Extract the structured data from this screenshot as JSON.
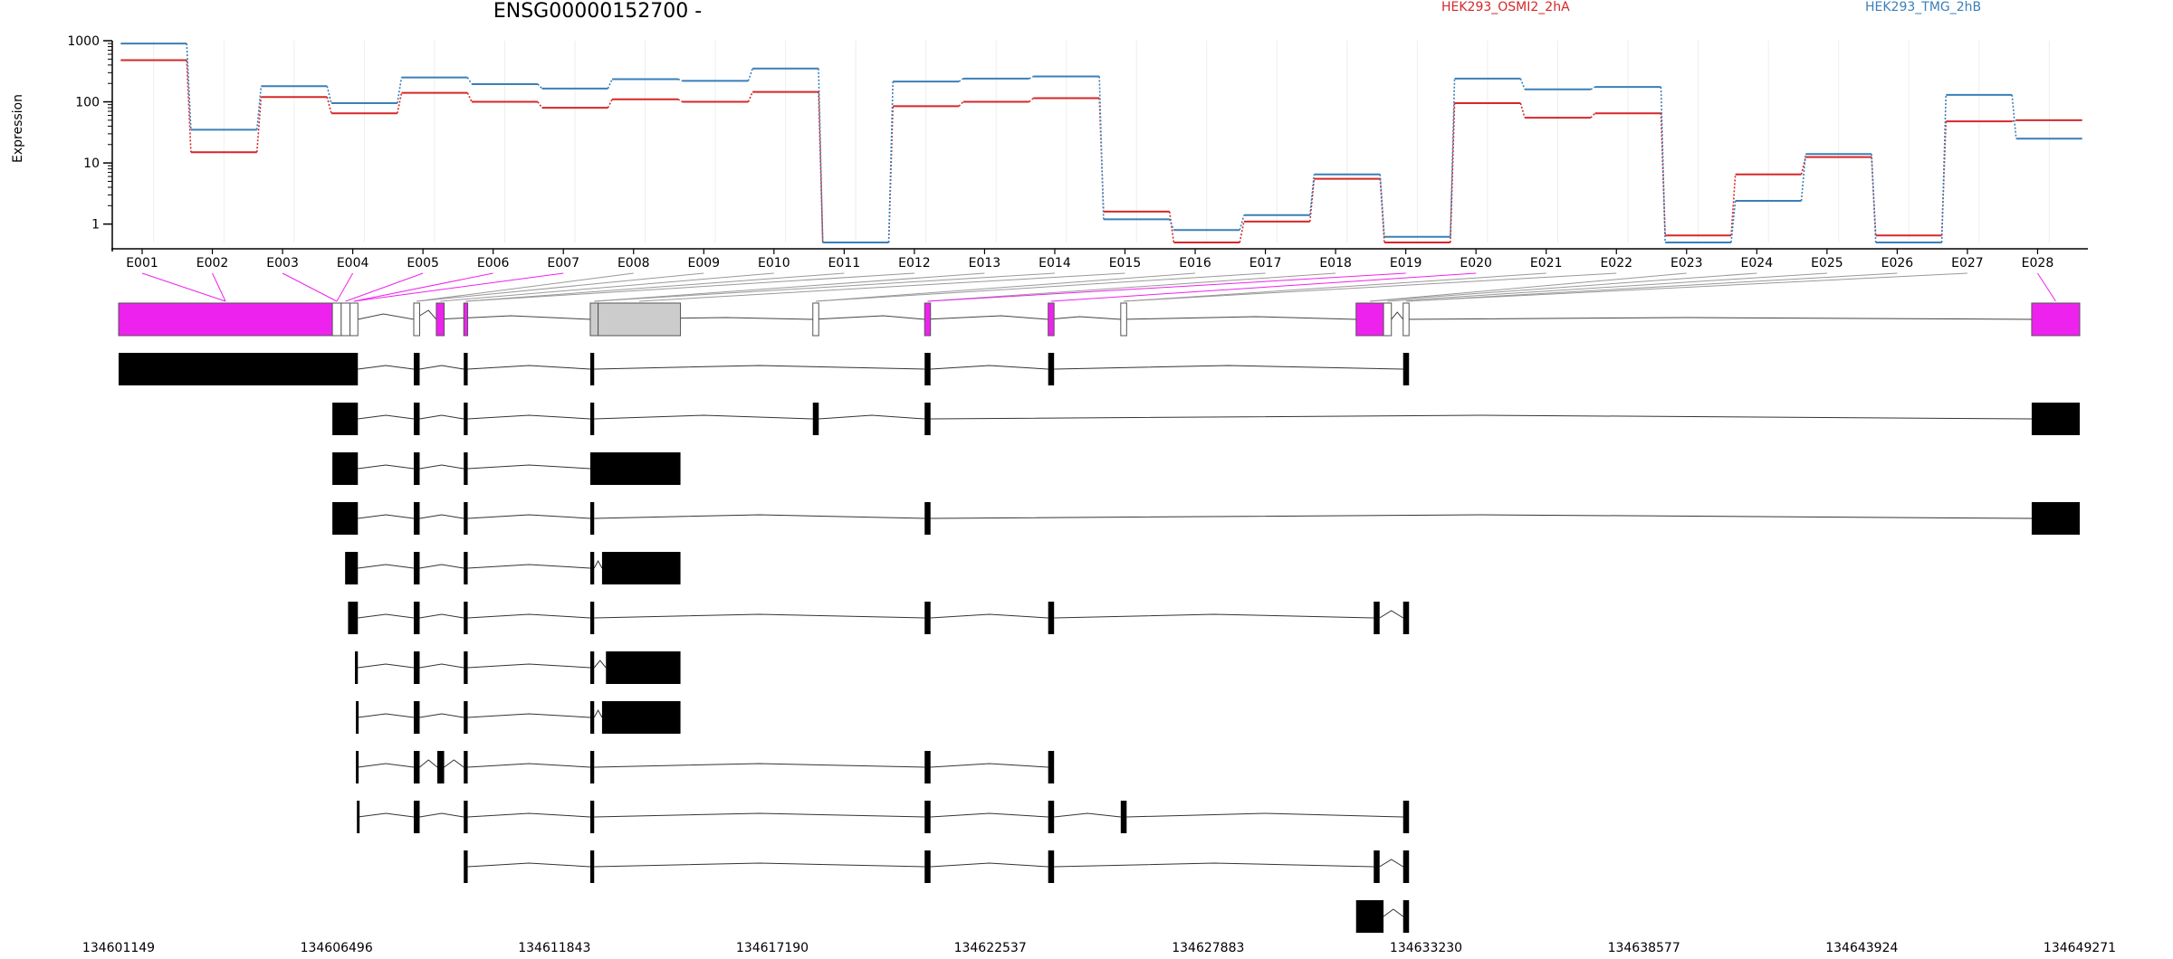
{
  "chart_data": {
    "type": "line",
    "title": "ENSG00000152700 -",
    "ylabel": "Expression",
    "xlabel": "",
    "yscale": "log",
    "ylim": [
      0.5,
      1000
    ],
    "yticks": [
      1,
      10,
      100,
      1000
    ],
    "ytick_labels": [
      "1",
      "10",
      "100",
      "1000"
    ],
    "categories": [
      "E001",
      "E002",
      "E003",
      "E004",
      "E005",
      "E006",
      "E007",
      "E008",
      "E009",
      "E010",
      "E011",
      "E012",
      "E013",
      "E014",
      "E015",
      "E016",
      "E017",
      "E018",
      "E019",
      "E020",
      "E021",
      "E022",
      "E023",
      "E024",
      "E025",
      "E026",
      "E027",
      "E028"
    ],
    "series": [
      {
        "name": "HEK293_OSMI2_2hA",
        "color": "#d62728",
        "values": [
          480,
          15,
          120,
          65,
          140,
          100,
          80,
          110,
          100,
          145,
          0.5,
          85,
          100,
          115,
          1.6,
          0.5,
          1.1,
          5.5,
          0.5,
          95,
          55,
          65,
          0.65,
          6.5,
          12.5,
          0.65,
          48,
          50
        ]
      },
      {
        "name": "HEK293_TMG_2hB",
        "color": "#3a7fb8",
        "values": [
          900,
          35,
          180,
          95,
          250,
          195,
          165,
          235,
          220,
          350,
          0.5,
          215,
          240,
          260,
          1.2,
          0.8,
          1.4,
          6.5,
          0.62,
          240,
          160,
          175,
          0.5,
          2.4,
          14,
          0.5,
          130,
          25
        ]
      }
    ],
    "genomic_axis": {
      "tick_labels": [
        "134601149",
        "134606496",
        "134611843",
        "134617190",
        "134622537",
        "134627883",
        "134633230",
        "134638577",
        "134643924",
        "134649271"
      ]
    },
    "exon_highlight_color": "#ee22ee",
    "highlighted_exons": [
      "E001",
      "E002",
      "E003",
      "E004",
      "E005",
      "E006",
      "E007",
      "E019",
      "E020",
      "E028"
    ],
    "transcript_count": 13
  }
}
